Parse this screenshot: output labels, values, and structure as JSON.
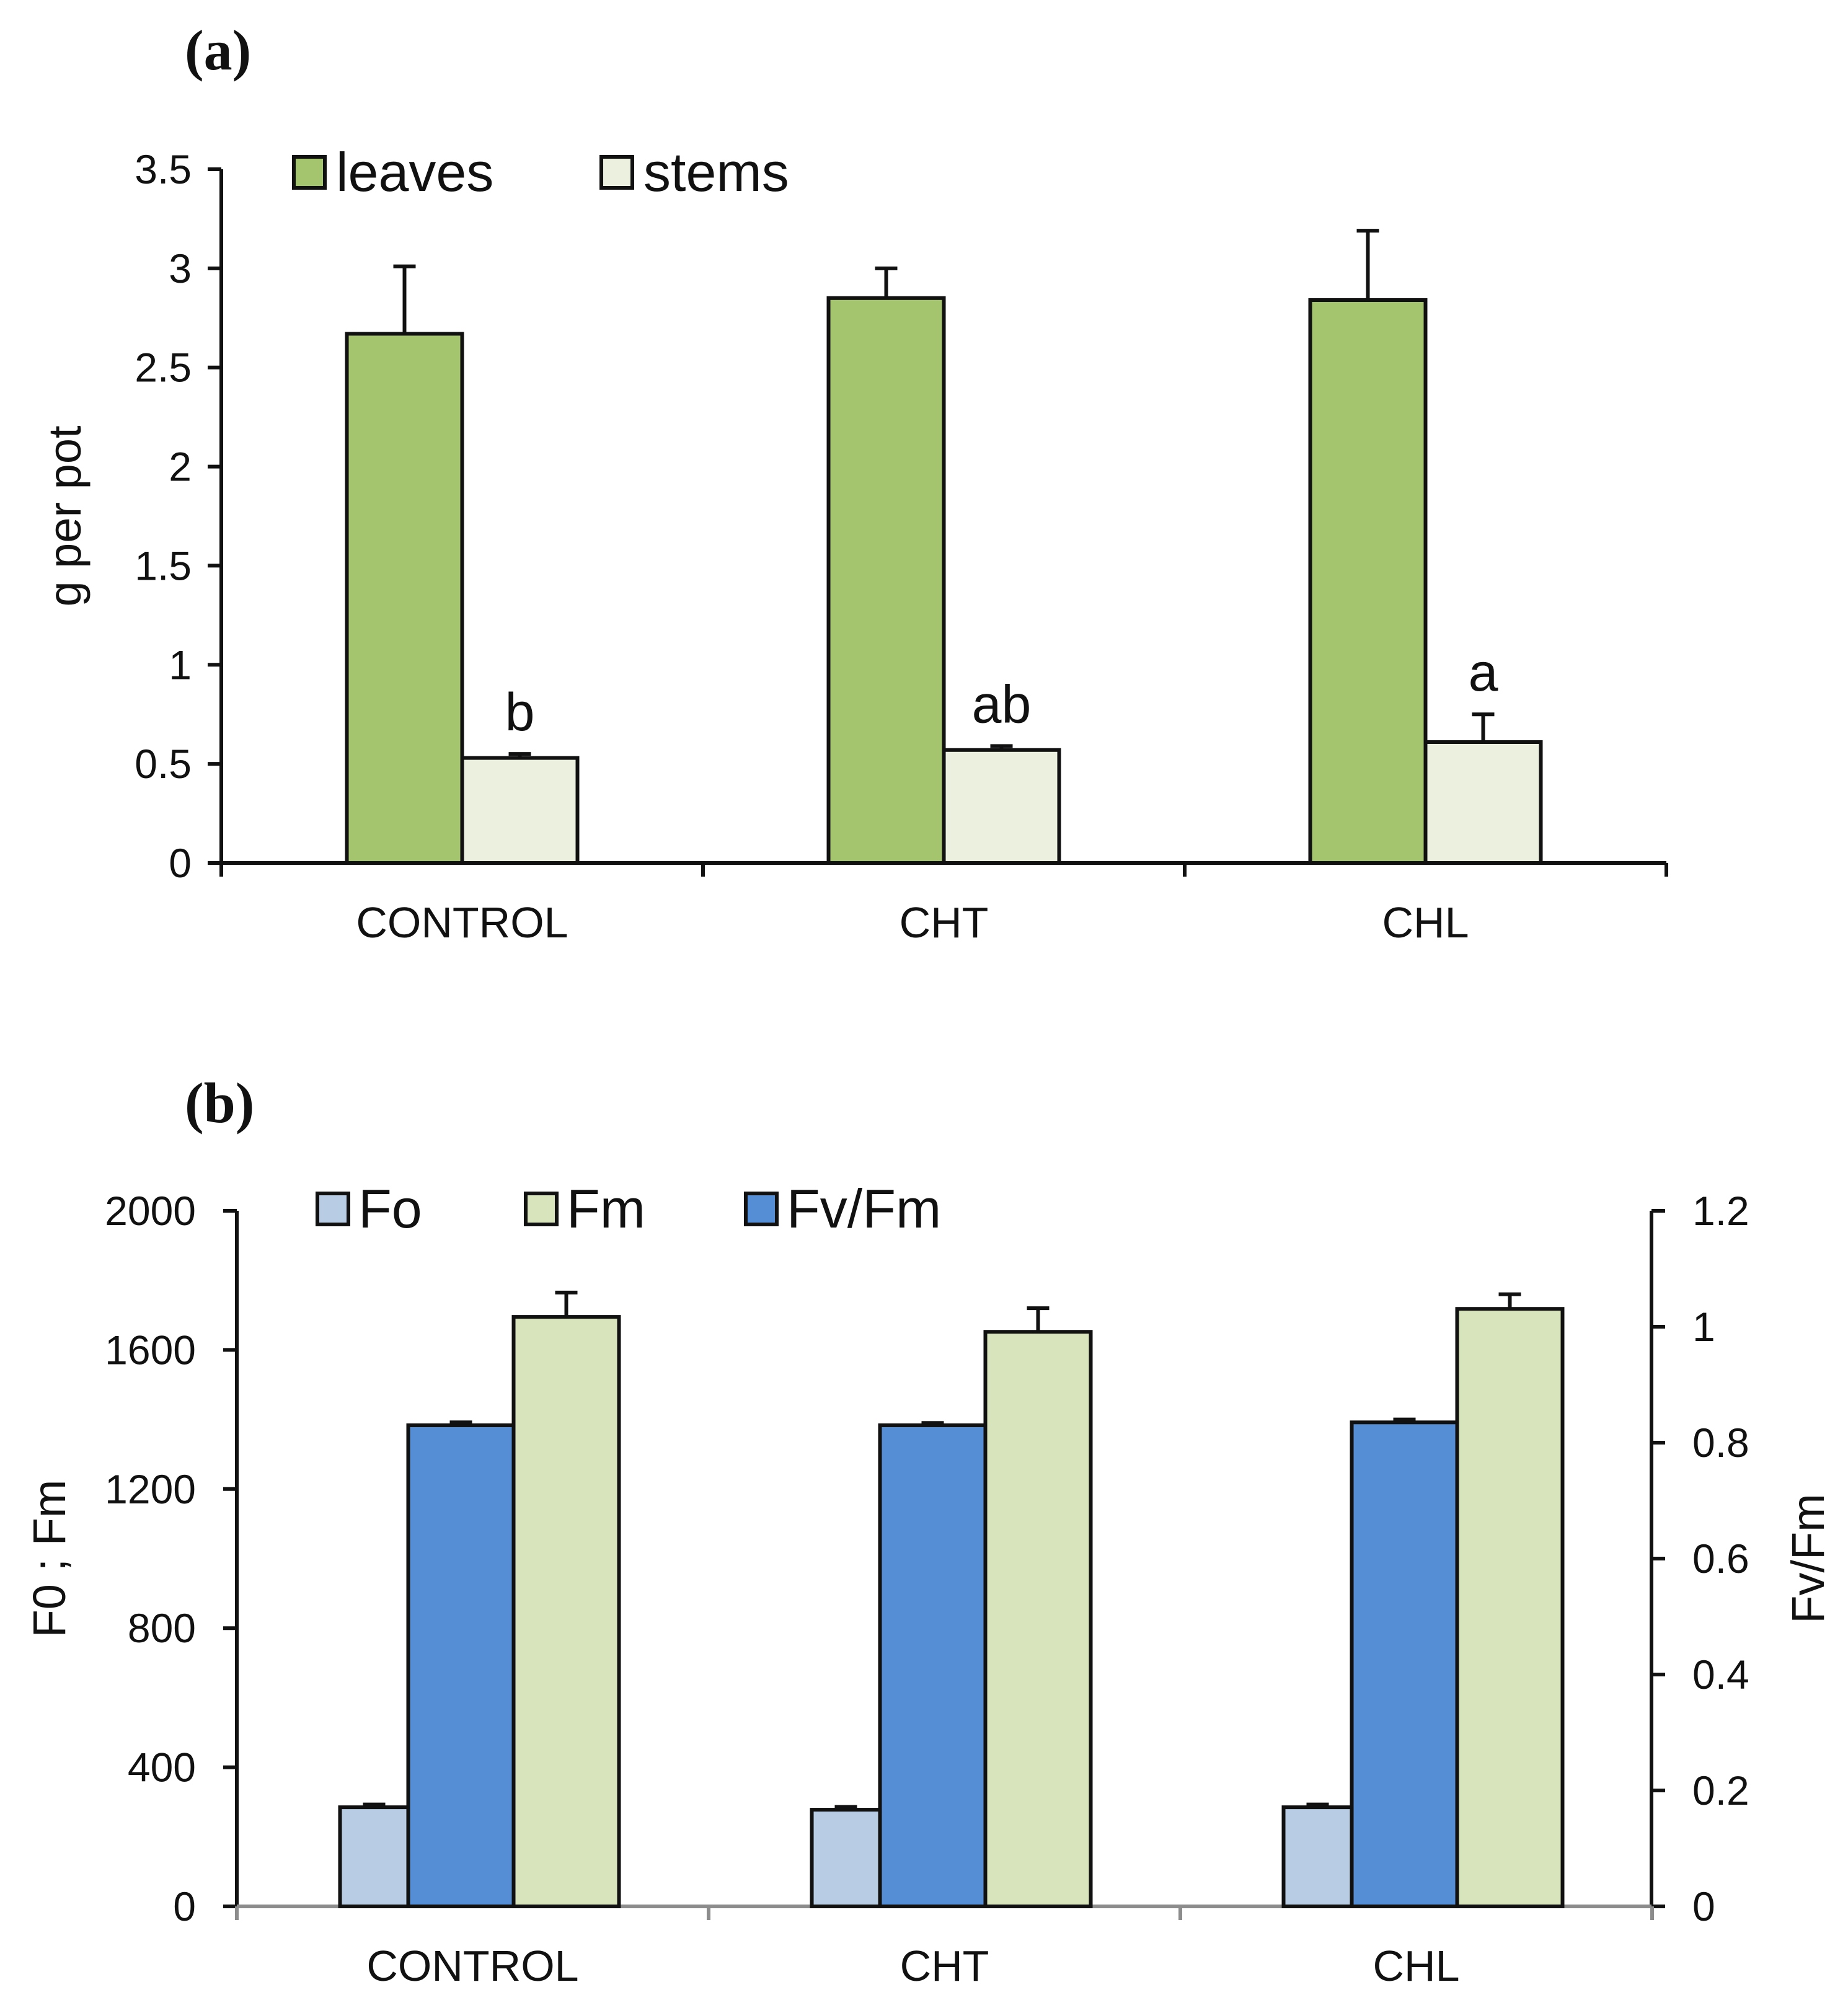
{
  "chart_data": [
    {
      "panel_label": "(a)",
      "type": "bar",
      "categories": [
        "CONTROL",
        "CHT",
        "CHL"
      ],
      "series": [
        {
          "name": "leaves",
          "values": [
            2.67,
            2.85,
            2.84
          ],
          "errors": [
            0.34,
            0.15,
            0.35
          ],
          "color": "#a5c46e"
        },
        {
          "name": "stems",
          "values": [
            0.53,
            0.57,
            0.61
          ],
          "errors": [
            0.02,
            0.02,
            0.14
          ],
          "color": "#ebf1de"
        }
      ],
      "annotations": [
        {
          "series": "stems",
          "category": "CONTROL",
          "text": "b"
        },
        {
          "series": "stems",
          "category": "CHT",
          "text": "ab"
        },
        {
          "series": "stems",
          "category": "CHL",
          "text": "a"
        }
      ],
      "ylabel": "g per pot",
      "ylim": [
        0,
        3.5
      ],
      "yticks": [
        "0",
        "0.5",
        "1",
        "1.5",
        "2",
        "2.5",
        "3",
        "3.5"
      ],
      "legend_position": "top-left",
      "grid": false
    },
    {
      "panel_label": "(b)",
      "type": "bar",
      "categories": [
        "CONTROL",
        "CHT",
        "CHL"
      ],
      "series": [
        {
          "name": "Fo",
          "axis": "left",
          "values": [
            285,
            278,
            285
          ],
          "errors": [
            8,
            8,
            8
          ],
          "color": "#b8cce4"
        },
        {
          "name": "Fv/Fm",
          "axis": "right",
          "values": [
            0.83,
            0.83,
            0.835
          ],
          "errors": [
            0.005,
            0.004,
            0.005
          ],
          "color": "#558ed5"
        },
        {
          "name": "Fm",
          "axis": "left",
          "values": [
            1695,
            1652,
            1718
          ],
          "errors": [
            70,
            68,
            42
          ],
          "color": "#d8e4bc"
        }
      ],
      "legend_order": [
        "Fo",
        "Fm",
        "Fv/Fm"
      ],
      "ylabel": "F0 ; Fm",
      "ylabel_right": "Fv/Fm",
      "ylim": [
        0,
        2000
      ],
      "yticks": [
        "0",
        "400",
        "800",
        "1200",
        "1600",
        "2000"
      ],
      "ylim_right": [
        0,
        1.2
      ],
      "yticks_right": [
        "0",
        "0.2",
        "0.4",
        "0.6",
        "0.8",
        "1",
        "1.2"
      ],
      "legend_position": "top-left",
      "grid": false
    }
  ]
}
